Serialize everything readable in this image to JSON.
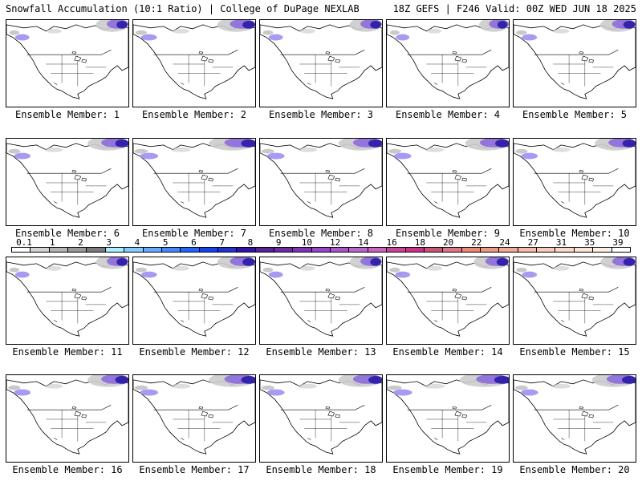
{
  "header": {
    "left": "Snowfall Accumulation (10:1 Ratio) | College of DuPage NEXLAB",
    "right": "18Z GEFS | F246 Valid: 00Z WED JUN 18 2025"
  },
  "members": [
    {
      "label": "Ensemble Member: 1",
      "coverage": 0.3
    },
    {
      "label": "Ensemble Member: 2",
      "coverage": 0.4
    },
    {
      "label": "Ensemble Member: 3",
      "coverage": 0.3
    },
    {
      "label": "Ensemble Member: 4",
      "coverage": 0.25
    },
    {
      "label": "Ensemble Member: 5",
      "coverage": 0.35
    },
    {
      "label": "Ensemble Member: 6",
      "coverage": 0.45
    },
    {
      "label": "Ensemble Member: 7",
      "coverage": 0.55
    },
    {
      "label": "Ensemble Member: 8",
      "coverage": 0.5
    },
    {
      "label": "Ensemble Member: 9",
      "coverage": 0.5
    },
    {
      "label": "Ensemble Member: 10",
      "coverage": 0.45
    },
    {
      "label": "Ensemble Member: 11",
      "coverage": 0.3
    },
    {
      "label": "Ensemble Member: 12",
      "coverage": 0.4
    },
    {
      "label": "Ensemble Member: 13",
      "coverage": 0.3
    },
    {
      "label": "Ensemble Member: 14",
      "coverage": 0.35
    },
    {
      "label": "Ensemble Member: 15",
      "coverage": 0.35
    },
    {
      "label": "Ensemble Member: 16",
      "coverage": 0.45
    },
    {
      "label": "Ensemble Member: 17",
      "coverage": 0.55
    },
    {
      "label": "Ensemble Member: 18",
      "coverage": 0.5
    },
    {
      "label": "Ensemble Member: 19",
      "coverage": 0.6
    },
    {
      "label": "Ensemble Member: 20",
      "coverage": 0.5
    }
  ],
  "colorbar": {
    "ticks": [
      "0.1",
      "1",
      "2",
      "3",
      "4",
      "5",
      "6",
      "7",
      "8",
      "9",
      "10",
      "12",
      "14",
      "16",
      "18",
      "20",
      "22",
      "24",
      "27",
      "31",
      "35",
      "39"
    ],
    "colors": [
      "#ffffff",
      "#d4d4d4",
      "#b4b4b4",
      "#9a9a9a",
      "#7c7c7c",
      "#aaeeff",
      "#88ccff",
      "#66aaff",
      "#4488ff",
      "#2266ff",
      "#1144ee",
      "#2233cc",
      "#3311aa",
      "#552299",
      "#6a2aaa",
      "#7f33bb",
      "#9944cc",
      "#aa55cc",
      "#bb66cc",
      "#cc66bb",
      "#cc4499",
      "#cc3388",
      "#cc5577",
      "#dd7788",
      "#ee8877",
      "#ee9988",
      "#f2aa99",
      "#f6bbaa",
      "#f8ccbb",
      "#fad9c8",
      "#fbe5d8",
      "#fdf0e6",
      "#ffffff"
    ]
  }
}
